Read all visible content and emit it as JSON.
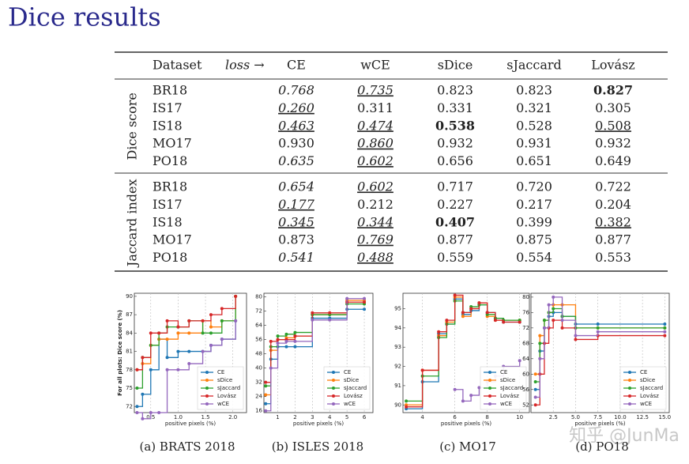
{
  "title": "Dice results",
  "table": {
    "header": [
      "Dataset",
      "loss →",
      "CE",
      "wCE",
      "sDice",
      "sJaccard",
      "Lovász"
    ],
    "groups": [
      {
        "label": "Dice score",
        "rows": [
          {
            "dataset": "BR18",
            "cells": [
              {
                "text": "0.768",
                "italic": true
              },
              {
                "text": "0.735",
                "italic": true,
                "underline": true
              },
              {
                "text": "0.823"
              },
              {
                "text": "0.823"
              },
              {
                "text": "0.827",
                "bold": true
              }
            ]
          },
          {
            "dataset": "IS17",
            "cells": [
              {
                "text": "0.260",
                "italic": true,
                "underline": true
              },
              {
                "text": "0.311"
              },
              {
                "text": "0.331"
              },
              {
                "text": "0.321"
              },
              {
                "text": "0.305"
              }
            ]
          },
          {
            "dataset": "IS18",
            "cells": [
              {
                "text": "0.463",
                "italic": true,
                "underline": true
              },
              {
                "text": "0.474",
                "italic": true,
                "underline": true
              },
              {
                "text": "0.538",
                "bold": true
              },
              {
                "text": "0.528"
              },
              {
                "text": "0.508",
                "underline": true
              }
            ]
          },
          {
            "dataset": "MO17",
            "cells": [
              {
                "text": "0.930"
              },
              {
                "text": "0.860",
                "italic": true,
                "underline": true
              },
              {
                "text": "0.932"
              },
              {
                "text": "0.931"
              },
              {
                "text": "0.932"
              }
            ]
          },
          {
            "dataset": "PO18",
            "cells": [
              {
                "text": "0.635",
                "italic": true
              },
              {
                "text": "0.602",
                "italic": true,
                "underline": true
              },
              {
                "text": "0.656"
              },
              {
                "text": "0.651"
              },
              {
                "text": "0.649"
              }
            ]
          }
        ]
      },
      {
        "label": "Jaccard index",
        "rows": [
          {
            "dataset": "BR18",
            "cells": [
              {
                "text": "0.654",
                "italic": true
              },
              {
                "text": "0.602",
                "italic": true,
                "underline": true
              },
              {
                "text": "0.717"
              },
              {
                "text": "0.720"
              },
              {
                "text": "0.722"
              }
            ]
          },
          {
            "dataset": "IS17",
            "cells": [
              {
                "text": "0.177",
                "italic": true,
                "underline": true
              },
              {
                "text": "0.212"
              },
              {
                "text": "0.227"
              },
              {
                "text": "0.217"
              },
              {
                "text": "0.204"
              }
            ]
          },
          {
            "dataset": "IS18",
            "cells": [
              {
                "text": "0.345",
                "italic": true,
                "underline": true
              },
              {
                "text": "0.344",
                "italic": true,
                "underline": true
              },
              {
                "text": "0.407",
                "bold": true
              },
              {
                "text": "0.399"
              },
              {
                "text": "0.382",
                "underline": true
              }
            ]
          },
          {
            "dataset": "MO17",
            "cells": [
              {
                "text": "0.873"
              },
              {
                "text": "0.769",
                "italic": true,
                "underline": true
              },
              {
                "text": "0.877"
              },
              {
                "text": "0.875"
              },
              {
                "text": "0.877"
              }
            ]
          },
          {
            "dataset": "PO18",
            "cells": [
              {
                "text": "0.541",
                "italic": true
              },
              {
                "text": "0.488",
                "italic": true,
                "underline": true
              },
              {
                "text": "0.559"
              },
              {
                "text": "0.554"
              },
              {
                "text": "0.553"
              }
            ]
          }
        ]
      }
    ]
  },
  "chart_data": [
    {
      "type": "line",
      "step": true,
      "caption": "(a) BRATS 2018",
      "ylabel": "For all plots: Dice score (%)",
      "xlabel": "positive pixels (%)",
      "legend": "lower right",
      "x": [
        0.25,
        0.35,
        0.5,
        0.65,
        0.8,
        1.0,
        1.2,
        1.45,
        1.6,
        1.8,
        2.05
      ],
      "xlim": [
        0.2,
        2.25
      ],
      "ylim": [
        71,
        90.5
      ],
      "xticks": [
        0.5,
        {
          "value": 1.0,
          "label": "1.0"
        },
        1.5,
        {
          "value": 2.0,
          "label": "2.0"
        }
      ],
      "yticks": [
        72,
        75,
        78,
        81,
        84,
        87,
        90
      ],
      "series": [
        {
          "name": "CE",
          "color": "#1f77b4",
          "values": [
            72,
            74,
            78,
            83,
            80,
            81,
            81,
            81,
            82,
            83,
            86
          ]
        },
        {
          "name": "sDice",
          "color": "#ff7f0e",
          "values": [
            78,
            79,
            82,
            83,
            83,
            84,
            84,
            86,
            85,
            86,
            90
          ]
        },
        {
          "name": "sJaccard",
          "color": "#2ca02c",
          "values": [
            75,
            80,
            82,
            84,
            85,
            85,
            86,
            84,
            84,
            86,
            90
          ]
        },
        {
          "name": "Lovász",
          "color": "#d62728",
          "values": [
            78,
            80,
            84,
            84,
            86,
            85,
            86,
            86,
            87,
            88,
            90
          ]
        },
        {
          "name": "wCE",
          "color": "#9467bd",
          "values": [
            71,
            70,
            71,
            71,
            78,
            78,
            79,
            81,
            82,
            83,
            86
          ]
        }
      ]
    },
    {
      "type": "line",
      "step": true,
      "caption": "(b) ISLES 2018",
      "xlabel": "positive pixels (%)",
      "legend": "lower right",
      "x": [
        0.3,
        0.6,
        1.0,
        1.5,
        2.0,
        3.0,
        4.0,
        5.0,
        6.0
      ],
      "xlim": [
        0.2,
        6.5
      ],
      "ylim": [
        15,
        82
      ],
      "xticks": [
        1,
        2,
        3,
        4,
        5,
        6
      ],
      "yticks": [
        16,
        24,
        32,
        40,
        48,
        56,
        64,
        72,
        80
      ],
      "series": [
        {
          "name": "CE",
          "color": "#1f77b4",
          "values": [
            20,
            45,
            52,
            52,
            52,
            68,
            68,
            73,
            73
          ]
        },
        {
          "name": "sDice",
          "color": "#ff7f0e",
          "values": [
            25,
            50,
            56,
            57,
            58,
            70,
            70,
            78,
            78
          ]
        },
        {
          "name": "sJaccard",
          "color": "#2ca02c",
          "values": [
            30,
            52,
            58,
            59,
            60,
            70,
            70,
            76,
            76
          ]
        },
        {
          "name": "Lovász",
          "color": "#d62728",
          "values": [
            32,
            55,
            56,
            56,
            58,
            71,
            71,
            77,
            77
          ]
        },
        {
          "name": "wCE",
          "color": "#9467bd",
          "values": [
            16,
            40,
            54,
            55,
            55,
            67,
            67,
            79,
            79
          ]
        }
      ]
    },
    {
      "type": "line",
      "step": true,
      "caption": "(c) MO17",
      "xlabel": "positive pixels (%)",
      "legend": "lower right",
      "x": [
        3,
        4,
        5,
        5.5,
        6,
        6.5,
        7,
        7.5,
        8,
        8.5,
        9,
        10
      ],
      "xlim": [
        2.8,
        10.6
      ],
      "ylim": [
        89.6,
        95.8
      ],
      "xticks": [
        4,
        6,
        8,
        10
      ],
      "yticks": [
        90,
        91,
        92,
        93,
        94,
        95
      ],
      "series": [
        {
          "name": "CE",
          "color": "#1f77b4",
          "values": [
            89.8,
            91.2,
            93.7,
            94.2,
            95.5,
            94.7,
            94.9,
            95.2,
            94.8,
            94.5,
            94.3,
            94.3
          ]
        },
        {
          "name": "sDice",
          "color": "#ff7f0e",
          "values": [
            90.0,
            91.8,
            93.6,
            94.3,
            95.6,
            94.6,
            95.0,
            95.3,
            94.6,
            94.4,
            94.4,
            94.4
          ]
        },
        {
          "name": "sJaccard",
          "color": "#2ca02c",
          "values": [
            90.2,
            91.5,
            93.5,
            94.2,
            95.4,
            94.8,
            95.1,
            95.2,
            94.7,
            94.5,
            94.4,
            94.4
          ]
        },
        {
          "name": "Lovász",
          "color": "#d62728",
          "values": [
            89.9,
            91.8,
            93.8,
            94.4,
            95.7,
            94.8,
            95.0,
            95.3,
            94.8,
            94.4,
            94.3,
            94.3
          ]
        },
        {
          "name": "wCE",
          "color": "#9467bd",
          "values": [
            null,
            null,
            null,
            null,
            90.8,
            90.2,
            90.5,
            90.9,
            91.2,
            91.5,
            92.0,
            92.3
          ]
        }
      ]
    },
    {
      "type": "line",
      "step": true,
      "caption": "(d) PO18",
      "xlabel": "positive pixels (%)",
      "legend": "lower right",
      "x": [
        0.5,
        1,
        1.5,
        2,
        2.5,
        3.5,
        5,
        7.5,
        15
      ],
      "xlim": [
        0,
        15.5
      ],
      "ylim": [
        50,
        81
      ],
      "xticks": [
        2.5,
        {
          "value": 5.0,
          "label": "5.0"
        },
        7.5,
        {
          "value": 10.0,
          "label": "10.0"
        },
        12.5,
        {
          "value": 15.0,
          "label": "15.0"
        }
      ],
      "yticks": [
        52,
        56,
        60,
        64,
        68,
        72,
        76,
        80
      ],
      "series": [
        {
          "name": "CE",
          "color": "#1f77b4",
          "values": [
            56,
            66,
            72,
            75,
            76,
            75,
            73,
            73,
            73
          ]
        },
        {
          "name": "sDice",
          "color": "#ff7f0e",
          "values": [
            60,
            70,
            74,
            76,
            78,
            78,
            72,
            72,
            72
          ]
        },
        {
          "name": "sJaccard",
          "color": "#2ca02c",
          "values": [
            58,
            68,
            74,
            76,
            77,
            75,
            72,
            72,
            72
          ]
        },
        {
          "name": "Lovász",
          "color": "#d62728",
          "values": [
            52,
            60,
            68,
            72,
            74,
            72,
            69,
            70,
            70
          ]
        },
        {
          "name": "wCE",
          "color": "#9467bd",
          "values": [
            54,
            64,
            72,
            78,
            80,
            74,
            70,
            71,
            71
          ]
        }
      ]
    }
  ],
  "watermark": "知乎 @JunMa"
}
